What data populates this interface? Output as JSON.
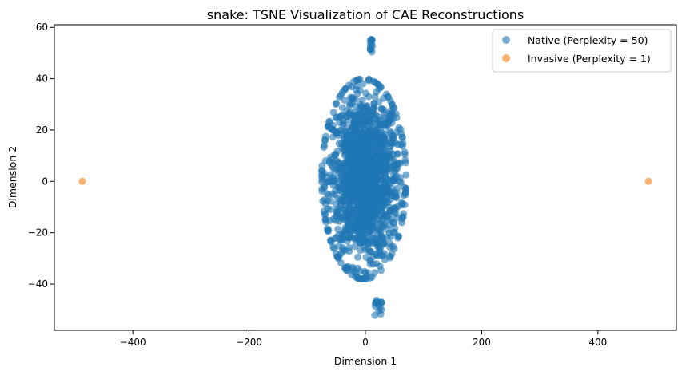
{
  "chart_data": {
    "type": "scatter",
    "title": "snake: TSNE Visualization of CAE Reconstructions",
    "xlabel": "Dimension 1",
    "ylabel": "Dimension 2",
    "xlim": [
      -535,
      535
    ],
    "ylim": [
      -58,
      61
    ],
    "xticks": [
      -400,
      -200,
      0,
      200,
      400
    ],
    "yticks": [
      -40,
      -20,
      0,
      20,
      40,
      60
    ],
    "grid": false,
    "legend_position": "top-right",
    "series": [
      {
        "name": "Native (Perplexity = 50)",
        "color": "#1f77b4",
        "alpha": 0.6,
        "cluster": {
          "x_range": [
            -75,
            70
          ],
          "y_range": [
            -38,
            40
          ],
          "description_points_approx": 4000,
          "outliers_top": {
            "x": 10,
            "y": [
              50,
              56
            ]
          },
          "outliers_bottom": {
            "x": 22,
            "y": [
              -53,
              -45
            ]
          }
        }
      },
      {
        "name": "Invasive (Perplexity = 1)",
        "color": "#ff7f0e",
        "alpha": 0.6,
        "points": [
          {
            "x": -487,
            "y": 0
          },
          {
            "x": 487,
            "y": 0
          }
        ]
      }
    ]
  }
}
